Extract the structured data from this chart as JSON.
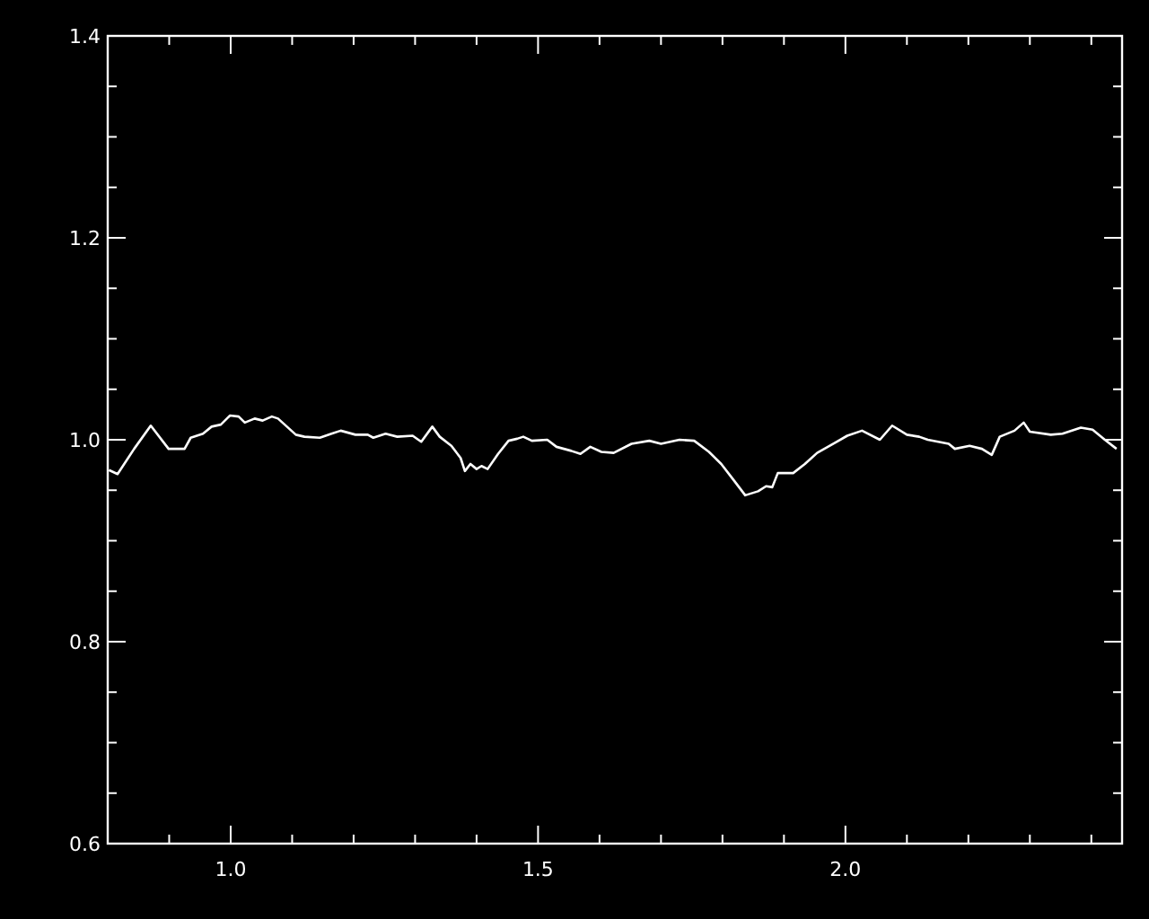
{
  "chart_data": {
    "type": "line",
    "color": "#ffffff",
    "marker": "none",
    "line_style": "solid",
    "xlim": [
      0.8,
      2.45
    ],
    "ylim": [
      0.6,
      1.4
    ],
    "xticks": [
      {
        "value": 0.9,
        "label": null
      },
      {
        "value": 1.0,
        "label": "1.0"
      },
      {
        "value": 1.1,
        "label": null
      },
      {
        "value": 1.2,
        "label": null
      },
      {
        "value": 1.3,
        "label": null
      },
      {
        "value": 1.4,
        "label": null
      },
      {
        "value": 1.5,
        "label": "1.5"
      },
      {
        "value": 1.6,
        "label": null
      },
      {
        "value": 1.7,
        "label": null
      },
      {
        "value": 1.8,
        "label": null
      },
      {
        "value": 1.9,
        "label": null
      },
      {
        "value": 2.0,
        "label": "2.0"
      },
      {
        "value": 2.1,
        "label": null
      },
      {
        "value": 2.2,
        "label": null
      },
      {
        "value": 2.3,
        "label": null
      },
      {
        "value": 2.4,
        "label": null
      }
    ],
    "yticks": [
      {
        "value": 0.6,
        "label": "0.6"
      },
      {
        "value": 0.65,
        "label": null
      },
      {
        "value": 0.7,
        "label": null
      },
      {
        "value": 0.75,
        "label": null
      },
      {
        "value": 0.8,
        "label": "0.8"
      },
      {
        "value": 0.85,
        "label": null
      },
      {
        "value": 0.9,
        "label": null
      },
      {
        "value": 0.95,
        "label": null
      },
      {
        "value": 1.0,
        "label": "1.0"
      },
      {
        "value": 1.05,
        "label": null
      },
      {
        "value": 1.1,
        "label": null
      },
      {
        "value": 1.15,
        "label": null
      },
      {
        "value": 1.2,
        "label": "1.2"
      },
      {
        "value": 1.25,
        "label": null
      },
      {
        "value": 1.3,
        "label": null
      },
      {
        "value": 1.35,
        "label": null
      },
      {
        "value": 1.4,
        "label": "1.4"
      }
    ],
    "x": [
      0.802,
      0.816,
      0.843,
      0.87,
      0.899,
      0.925,
      0.935,
      0.955,
      0.969,
      0.984,
      0.999,
      1.013,
      1.023,
      1.039,
      1.052,
      1.067,
      1.077,
      1.106,
      1.12,
      1.145,
      1.164,
      1.179,
      1.203,
      1.223,
      1.232,
      1.252,
      1.271,
      1.296,
      1.31,
      1.328,
      1.34,
      1.359,
      1.374,
      1.381,
      1.39,
      1.4,
      1.408,
      1.418,
      1.435,
      1.452,
      1.466,
      1.476,
      1.49,
      1.515,
      1.53,
      1.554,
      1.569,
      1.585,
      1.603,
      1.623,
      1.652,
      1.681,
      1.7,
      1.73,
      1.754,
      1.778,
      1.798,
      1.817,
      1.837,
      1.858,
      1.871,
      1.881,
      1.89,
      1.915,
      1.934,
      1.954,
      1.983,
      2.003,
      2.027,
      2.056,
      2.076,
      2.1,
      2.12,
      2.134,
      2.168,
      2.178,
      2.202,
      2.222,
      2.238,
      2.251,
      2.275,
      2.29,
      2.3,
      2.334,
      2.353,
      2.383,
      2.402,
      2.422,
      2.441
    ],
    "values": [
      0.97,
      0.966,
      0.991,
      1.014,
      0.991,
      0.991,
      1.002,
      1.006,
      1.013,
      1.015,
      1.024,
      1.023,
      1.017,
      1.021,
      1.019,
      1.023,
      1.021,
      1.005,
      1.003,
      1.002,
      1.006,
      1.009,
      1.005,
      1.005,
      1.002,
      1.006,
      1.003,
      1.004,
      0.998,
      1.013,
      1.003,
      0.994,
      0.982,
      0.969,
      0.976,
      0.971,
      0.974,
      0.971,
      0.986,
      0.999,
      1.001,
      1.003,
      0.999,
      1.0,
      0.993,
      0.989,
      0.986,
      0.993,
      0.988,
      0.987,
      0.996,
      0.999,
      0.996,
      1.0,
      0.999,
      0.988,
      0.976,
      0.961,
      0.945,
      0.949,
      0.954,
      0.953,
      0.967,
      0.967,
      0.976,
      0.987,
      0.997,
      1.004,
      1.009,
      1.0,
      1.014,
      1.005,
      1.003,
      1.0,
      0.996,
      0.991,
      0.994,
      0.991,
      0.985,
      1.003,
      1.009,
      1.017,
      1.008,
      1.005,
      1.006,
      1.012,
      1.01,
      1.0,
      0.991
    ]
  }
}
